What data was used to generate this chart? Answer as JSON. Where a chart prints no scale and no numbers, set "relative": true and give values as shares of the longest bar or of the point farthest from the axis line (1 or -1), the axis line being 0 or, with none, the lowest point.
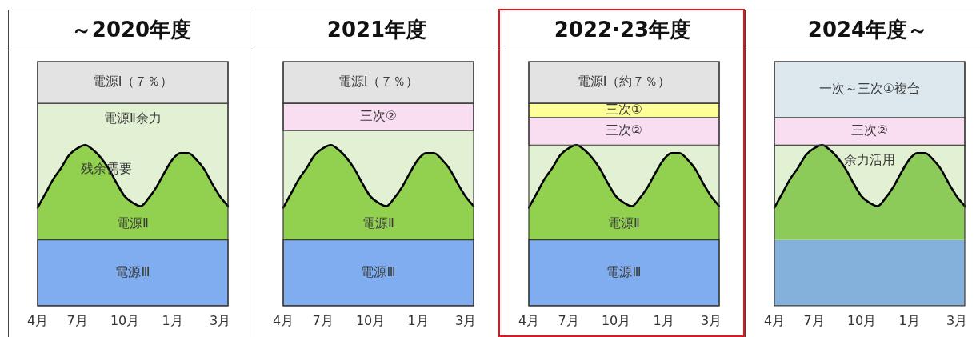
{
  "chart_data": [
    {
      "type": "area",
      "title": "～2020年度",
      "relative": true,
      "categories": [
        "4月",
        null,
        null,
        null,
        null,
        "7月",
        null,
        null,
        null,
        null,
        null,
        "10月",
        null,
        null,
        null,
        null,
        null,
        "1月",
        null,
        null,
        null,
        null,
        null,
        "3月",
        null
      ],
      "series": [
        {
          "name": "電源Ⅱ",
          "color": "#92d050",
          "values": [
            0.61,
            0.7,
            0.79,
            0.86,
            0.94,
            0.98,
            1.0,
            0.97,
            0.92,
            0.85,
            0.76,
            0.68,
            0.64,
            0.62,
            0.67,
            0.74,
            0.83,
            0.91,
            0.95,
            0.95,
            0.91,
            0.85,
            0.76,
            0.68,
            0.62
          ]
        }
      ],
      "bands": [
        {
          "axis": "y",
          "from": 0,
          "to": 0.41,
          "label": "電源Ⅲ",
          "color": "#80adef"
        },
        {
          "axis": "y",
          "from": 0.61,
          "to": 1.26,
          "label": "電源Ⅱ余力",
          "color": "#e2f1d3"
        },
        {
          "axis": "y",
          "from": 1.26,
          "to": 1.52,
          "label": "電源Ⅰ（７％）",
          "color": "#e3e3e3"
        }
      ],
      "annotations": [
        "残余需要"
      ]
    },
    {
      "type": "area",
      "title": "2021年度",
      "relative": true,
      "categories": [
        "4月",
        null,
        null,
        null,
        null,
        "7月",
        null,
        null,
        null,
        null,
        null,
        "10月",
        null,
        null,
        null,
        null,
        null,
        "1月",
        null,
        null,
        null,
        null,
        null,
        "3月",
        null
      ],
      "series": [
        {
          "name": "電源Ⅱ",
          "color": "#92d050",
          "values": [
            0.61,
            0.7,
            0.79,
            0.86,
            0.94,
            0.98,
            1.0,
            0.97,
            0.92,
            0.85,
            0.76,
            0.68,
            0.64,
            0.62,
            0.67,
            0.74,
            0.83,
            0.91,
            0.95,
            0.95,
            0.91,
            0.85,
            0.76,
            0.68,
            0.62
          ]
        }
      ],
      "bands": [
        {
          "axis": "y",
          "from": 0,
          "to": 0.41,
          "label": "電源Ⅲ",
          "color": "#80adef"
        },
        {
          "axis": "y",
          "from": 0.61,
          "to": 1.09,
          "color": "#e2f1d3"
        },
        {
          "axis": "y",
          "from": 1.09,
          "to": 1.26,
          "label": "三次②",
          "color": "#f9ddf0"
        },
        {
          "axis": "y",
          "from": 1.26,
          "to": 1.52,
          "label": "電源Ⅰ（７％）",
          "color": "#e3e3e3"
        }
      ]
    },
    {
      "type": "area",
      "title": "2022·23年度",
      "relative": true,
      "categories": [
        "4月",
        null,
        null,
        null,
        null,
        "7月",
        null,
        null,
        null,
        null,
        null,
        "10月",
        null,
        null,
        null,
        null,
        null,
        "1月",
        null,
        null,
        null,
        null,
        null,
        "3月",
        null
      ],
      "series": [
        {
          "name": "電源Ⅱ",
          "color": "#92d050",
          "values": [
            0.61,
            0.7,
            0.79,
            0.86,
            0.94,
            0.98,
            1.0,
            0.97,
            0.92,
            0.85,
            0.76,
            0.68,
            0.64,
            0.62,
            0.67,
            0.74,
            0.83,
            0.91,
            0.95,
            0.95,
            0.91,
            0.85,
            0.76,
            0.68,
            0.62
          ]
        }
      ],
      "bands": [
        {
          "axis": "y",
          "from": 0,
          "to": 0.41,
          "label": "電源Ⅲ",
          "color": "#80adef"
        },
        {
          "axis": "y",
          "from": 0.61,
          "to": 1.0,
          "color": "#e2f1d3"
        },
        {
          "axis": "y",
          "from": 1.0,
          "to": 1.17,
          "label": "三次②",
          "color": "#f9ddf0"
        },
        {
          "axis": "y",
          "from": 1.17,
          "to": 1.26,
          "label": "三次①",
          "color": "#ffff99"
        },
        {
          "axis": "y",
          "from": 1.26,
          "to": 1.52,
          "label": "電源Ⅰ（約７％）",
          "color": "#e3e3e3"
        }
      ]
    },
    {
      "type": "area",
      "title": "2024年度～",
      "relative": true,
      "categories": [
        "4月",
        null,
        null,
        null,
        null,
        "7月",
        null,
        null,
        null,
        null,
        null,
        "10月",
        null,
        null,
        null,
        null,
        null,
        "1月",
        null,
        null,
        null,
        null,
        null,
        "3月",
        null
      ],
      "series": [
        {
          "color": "#8ccb5a",
          "values": [
            0.61,
            0.7,
            0.79,
            0.86,
            0.94,
            0.98,
            1.0,
            0.97,
            0.92,
            0.85,
            0.76,
            0.68,
            0.64,
            0.62,
            0.67,
            0.74,
            0.83,
            0.91,
            0.95,
            0.95,
            0.91,
            0.85,
            0.76,
            0.68,
            0.62
          ]
        }
      ],
      "bands": [
        {
          "axis": "y",
          "from": 0,
          "to": 0.41,
          "color": "#84b0dc"
        },
        {
          "axis": "y",
          "from": 0.61,
          "to": 1.0,
          "label": "余力活用",
          "color": "#e2f1d3"
        },
        {
          "axis": "y",
          "from": 1.0,
          "to": 1.17,
          "label": "三次②",
          "color": "#f9ddf0"
        },
        {
          "axis": "y",
          "from": 1.17,
          "to": 1.52,
          "label": "一次～三次①複合",
          "color": "#dce8ee"
        }
      ]
    }
  ]
}
